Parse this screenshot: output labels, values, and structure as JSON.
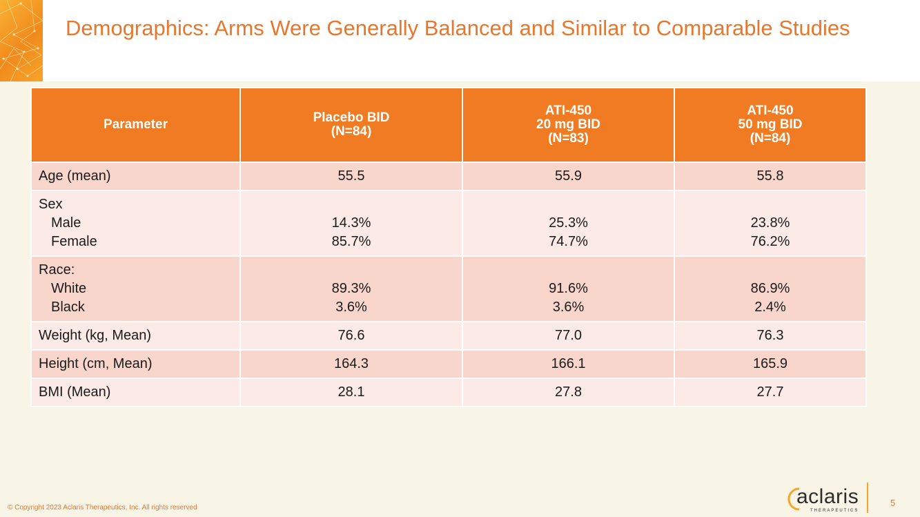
{
  "slide": {
    "title": "Demographics: Arms Were Generally Balanced and Similar to Comparable Studies",
    "copyright": "© Copyright 2023 Aclaris Therapeutics, Inc. All rights reserved",
    "page_number": "5",
    "logo": {
      "word": "aclaris",
      "sub": "THERAPEUTICS"
    },
    "colors": {
      "accent": "#e8772e",
      "header_fill": "#f07b22",
      "row_dark": "#f9d6cc",
      "row_light": "#fbeae5",
      "background": "#f8f4e6"
    }
  },
  "table": {
    "headers": {
      "param": "Parameter",
      "col1_l1": "Placebo BID",
      "col1_l2": "(N=84)",
      "col2_l1": "ATI-450",
      "col2_l2": "20 mg BID",
      "col2_l3": "(N=83)",
      "col3_l1": "ATI-450",
      "col3_l2": "50 mg BID",
      "col3_l3": "(N=84)"
    },
    "age": {
      "label": "Age (mean)",
      "v1": "55.5",
      "v2": "55.9",
      "v3": "55.8"
    },
    "sex": {
      "label": "Sex",
      "male_label": "Male",
      "female_label": "Female",
      "male": [
        "14.3%",
        "25.3%",
        "23.8%"
      ],
      "female": [
        "85.7%",
        "74.7%",
        "76.2%"
      ]
    },
    "race": {
      "label": "Race:",
      "white_label": "White",
      "black_label": "Black",
      "white": [
        "89.3%",
        "91.6%",
        "86.9%"
      ],
      "black": [
        "3.6%",
        "3.6%",
        "2.4%"
      ]
    },
    "weight": {
      "label": "Weight (kg, Mean)",
      "v1": "76.6",
      "v2": "77.0",
      "v3": "76.3"
    },
    "height": {
      "label": "Height (cm, Mean)",
      "v1": "164.3",
      "v2": "166.1",
      "v3": "165.9"
    },
    "bmi": {
      "label": "BMI (Mean)",
      "v1": "28.1",
      "v2": "27.8",
      "v3": "27.7"
    }
  }
}
